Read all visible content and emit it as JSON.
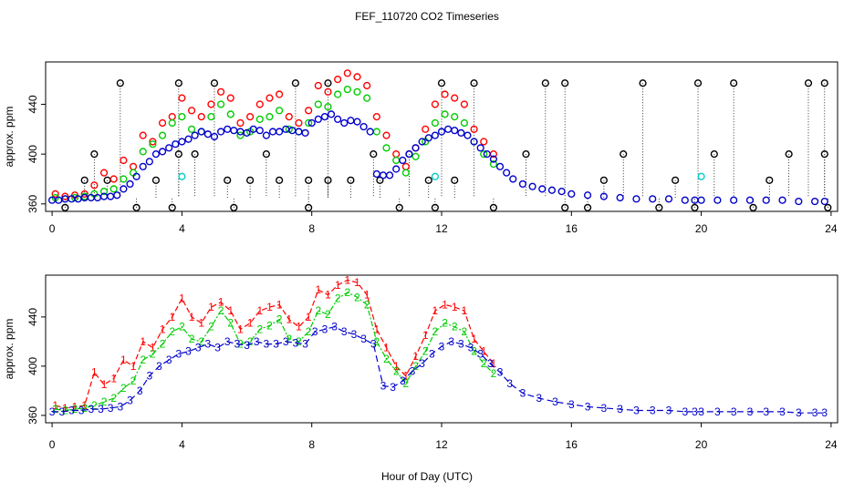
{
  "figure": {
    "title": "FEF_110720  CO2 Timeseries",
    "xlabel": "Hour of Day (UTC)"
  },
  "chart_data": [
    {
      "type": "scatter",
      "ylabel": "approx. ppm",
      "xlim": [
        -0.2,
        24.2
      ],
      "ylim": [
        354,
        474
      ],
      "x_ticks": [
        0,
        4,
        8,
        12,
        16,
        20,
        24
      ],
      "y_ticks": [
        360,
        400,
        440
      ],
      "y_tick_labels": [
        "360",
        "400",
        "440"
      ],
      "grid": false,
      "series": [
        {
          "key": "black",
          "color": "#000000",
          "x": [
            0.4,
            1.0,
            1.3,
            1.7,
            2.1,
            2.6,
            3.2,
            3.7,
            3.9,
            3.9,
            4.4,
            5.0,
            5.4,
            5.6,
            6.1,
            6.6,
            7.0,
            7.5,
            7.9,
            7.9,
            8.5,
            8.5,
            9.2,
            9.9,
            10.1,
            10.7,
            11.0,
            11.6,
            11.8,
            12.0,
            12.4,
            13.0,
            13.6,
            14.6,
            15.2,
            15.8,
            15.8,
            16.5,
            17.0,
            17.6,
            18.2,
            18.7,
            19.2,
            19.8,
            19.9,
            20.4,
            21.0,
            21.6,
            22.1,
            22.7,
            23.3,
            23.8,
            23.8,
            23.9
          ],
          "y": [
            357,
            379,
            400,
            379,
            457,
            357,
            379,
            357,
            400,
            457,
            400,
            457,
            379,
            357,
            379,
            400,
            379,
            457,
            379,
            357,
            379,
            457,
            379,
            400,
            379,
            357,
            400,
            379,
            357,
            457,
            379,
            457,
            357,
            400,
            457,
            357,
            457,
            357,
            379,
            400,
            457,
            357,
            379,
            357,
            457,
            400,
            457,
            357,
            379,
            400,
            457,
            400,
            457,
            357
          ]
        },
        {
          "key": "red",
          "color": "#ff0000",
          "x": [
            0.1,
            0.4,
            0.7,
            1.0,
            1.3,
            1.6,
            1.9,
            2.2,
            2.5,
            2.8,
            3.1,
            3.4,
            3.7,
            4.0,
            4.3,
            4.6,
            4.9,
            5.2,
            5.5,
            5.8,
            6.1,
            6.4,
            6.7,
            7.0,
            7.3,
            7.6,
            7.9,
            8.2,
            8.5,
            8.8,
            9.1,
            9.4,
            9.7,
            10.0,
            10.3,
            10.6,
            10.9,
            11.2,
            11.5,
            11.8,
            12.1,
            12.4,
            12.7,
            13.0,
            13.3,
            13.6
          ],
          "y": [
            368,
            366,
            367,
            368,
            375,
            385,
            380,
            395,
            390,
            415,
            410,
            425,
            430,
            445,
            435,
            430,
            440,
            450,
            445,
            425,
            430,
            440,
            445,
            448,
            430,
            425,
            435,
            455,
            450,
            460,
            465,
            462,
            455,
            430,
            415,
            400,
            390,
            405,
            420,
            440,
            448,
            445,
            440,
            420,
            410,
            400
          ]
        },
        {
          "key": "green",
          "color": "#00cc00",
          "x": [
            0.1,
            0.4,
            0.7,
            1.0,
            1.3,
            1.6,
            1.9,
            2.2,
            2.5,
            2.8,
            3.1,
            3.4,
            3.7,
            4.0,
            4.3,
            4.6,
            4.9,
            5.2,
            5.5,
            5.8,
            6.1,
            6.4,
            6.7,
            7.0,
            7.3,
            7.6,
            7.9,
            8.2,
            8.5,
            8.8,
            9.1,
            9.4,
            9.7,
            10.0,
            10.3,
            10.6,
            10.9,
            11.2,
            11.5,
            11.8,
            12.1,
            12.4,
            12.7,
            13.0,
            13.3,
            13.6
          ],
          "y": [
            365,
            364,
            365,
            366,
            368,
            370,
            372,
            380,
            385,
            402,
            408,
            415,
            425,
            430,
            420,
            418,
            430,
            440,
            432,
            415,
            418,
            428,
            430,
            435,
            420,
            418,
            425,
            440,
            438,
            448,
            452,
            450,
            445,
            418,
            405,
            395,
            385,
            398,
            410,
            425,
            432,
            430,
            425,
            410,
            400,
            392
          ]
        },
        {
          "key": "blue",
          "color": "#0000cc",
          "x": [
            0.0,
            0.2,
            0.4,
            0.6,
            0.8,
            1.0,
            1.2,
            1.4,
            1.6,
            1.8,
            2.0,
            2.2,
            2.4,
            2.6,
            2.8,
            3.0,
            3.2,
            3.4,
            3.6,
            3.8,
            4.0,
            4.2,
            4.4,
            4.6,
            4.8,
            5.0,
            5.2,
            5.4,
            5.6,
            5.8,
            6.0,
            6.2,
            6.4,
            6.6,
            6.8,
            7.0,
            7.2,
            7.4,
            7.6,
            7.8,
            8.0,
            8.2,
            8.4,
            8.6,
            8.8,
            9.0,
            9.2,
            9.4,
            9.6,
            9.8,
            10.0,
            10.2,
            10.4,
            10.6,
            10.8,
            11.0,
            11.2,
            11.4,
            11.6,
            11.8,
            12.0,
            12.2,
            12.4,
            12.6,
            12.8,
            13.0,
            13.2,
            13.4,
            13.6,
            13.8,
            14.0,
            14.2,
            14.5,
            14.8,
            15.1,
            15.4,
            15.7,
            16.0,
            16.5,
            17.0,
            17.5,
            18.0,
            18.5,
            19.0,
            19.5,
            19.8,
            20.0,
            20.5,
            21.0,
            21.5,
            22.0,
            22.5,
            23.0,
            23.5,
            23.8
          ],
          "y": [
            363,
            363,
            364,
            364,
            364,
            365,
            365,
            365,
            366,
            366,
            367,
            372,
            376,
            382,
            390,
            394,
            400,
            402,
            405,
            408,
            410,
            412,
            415,
            418,
            416,
            414,
            418,
            420,
            419,
            418,
            417,
            420,
            419,
            415,
            418,
            418,
            420,
            419,
            418,
            417,
            425,
            428,
            430,
            432,
            428,
            425,
            427,
            426,
            422,
            418,
            384,
            383,
            383,
            388,
            395,
            400,
            405,
            410,
            413,
            415,
            418,
            420,
            419,
            417,
            415,
            410,
            405,
            400,
            396,
            390,
            385,
            380,
            376,
            374,
            372,
            371,
            370,
            368,
            367,
            366,
            365,
            364,
            364,
            364,
            363,
            363,
            363,
            363,
            363,
            363,
            363,
            363,
            362,
            362,
            362
          ]
        },
        {
          "key": "cyan",
          "color": "#00cccc",
          "x": [
            4.0,
            11.8,
            20.0
          ],
          "y": [
            382,
            382,
            382
          ]
        }
      ]
    },
    {
      "type": "line",
      "ylabel": "approx. ppm",
      "xlim": [
        -0.2,
        24.2
      ],
      "ylim": [
        354,
        474
      ],
      "x_ticks": [
        0,
        4,
        8,
        12,
        16,
        20,
        24
      ],
      "y_ticks": [
        360,
        400,
        440
      ],
      "y_tick_labels": [
        "360",
        "400",
        "440"
      ],
      "grid": false,
      "series": [
        {
          "key": "1",
          "marker": "1",
          "color": "#ff0000",
          "x": [
            0.1,
            0.4,
            0.7,
            1.0,
            1.3,
            1.6,
            1.9,
            2.2,
            2.5,
            2.8,
            3.1,
            3.4,
            3.7,
            4.0,
            4.3,
            4.6,
            4.9,
            5.2,
            5.5,
            5.8,
            6.1,
            6.4,
            6.7,
            7.0,
            7.3,
            7.6,
            7.9,
            8.2,
            8.5,
            8.8,
            9.1,
            9.4,
            9.7,
            10.0,
            10.3,
            10.6,
            10.9,
            11.2,
            11.5,
            11.8,
            12.1,
            12.4,
            12.7,
            13.0,
            13.3,
            13.6
          ],
          "y": [
            368,
            366,
            367,
            368,
            395,
            385,
            390,
            405,
            400,
            420,
            415,
            430,
            440,
            455,
            440,
            435,
            448,
            452,
            445,
            430,
            435,
            445,
            448,
            450,
            438,
            432,
            440,
            462,
            458,
            466,
            470,
            468,
            458,
            430,
            415,
            400,
            392,
            408,
            425,
            445,
            450,
            448,
            445,
            422,
            412,
            402
          ]
        },
        {
          "key": "2",
          "marker": "2",
          "color": "#00cc00",
          "x": [
            0.1,
            0.4,
            0.7,
            1.0,
            1.3,
            1.6,
            1.9,
            2.2,
            2.5,
            2.8,
            3.1,
            3.4,
            3.7,
            4.0,
            4.3,
            4.6,
            4.9,
            5.2,
            5.5,
            5.8,
            6.1,
            6.4,
            6.7,
            7.0,
            7.3,
            7.6,
            7.9,
            8.2,
            8.5,
            8.8,
            9.1,
            9.4,
            9.7,
            10.0,
            10.3,
            10.6,
            10.9,
            11.2,
            11.5,
            11.8,
            12.1,
            12.4,
            12.7,
            13.0,
            13.3,
            13.6
          ],
          "y": [
            365,
            364,
            365,
            366,
            368,
            371,
            374,
            382,
            388,
            405,
            410,
            418,
            428,
            432,
            422,
            420,
            432,
            445,
            435,
            418,
            420,
            430,
            433,
            438,
            422,
            420,
            428,
            445,
            442,
            455,
            460,
            456,
            450,
            420,
            406,
            396,
            386,
            400,
            412,
            428,
            435,
            432,
            428,
            412,
            402,
            394
          ]
        },
        {
          "key": "3",
          "marker": "3",
          "color": "#0000cc",
          "x": [
            0.0,
            0.3,
            0.6,
            0.9,
            1.2,
            1.5,
            1.8,
            2.1,
            2.4,
            2.7,
            3.0,
            3.3,
            3.6,
            3.9,
            4.2,
            4.5,
            4.8,
            5.1,
            5.4,
            5.7,
            6.0,
            6.3,
            6.6,
            6.9,
            7.2,
            7.5,
            7.8,
            8.1,
            8.4,
            8.7,
            9.0,
            9.3,
            9.6,
            9.9,
            10.2,
            10.5,
            10.8,
            11.1,
            11.4,
            11.7,
            12.0,
            12.3,
            12.6,
            12.9,
            13.2,
            13.5,
            13.8,
            14.1,
            14.5,
            15.0,
            15.5,
            16.0,
            16.5,
            17.0,
            17.5,
            18.0,
            18.5,
            19.0,
            19.5,
            19.8,
            20.0,
            20.5,
            21.0,
            21.5,
            22.0,
            22.5,
            23.0,
            23.5,
            23.8
          ],
          "y": [
            363,
            363,
            364,
            364,
            365,
            365,
            366,
            367,
            372,
            380,
            392,
            400,
            405,
            410,
            412,
            415,
            418,
            415,
            420,
            418,
            417,
            420,
            418,
            418,
            420,
            419,
            418,
            428,
            430,
            432,
            428,
            426,
            422,
            418,
            384,
            383,
            388,
            396,
            402,
            410,
            416,
            420,
            418,
            415,
            410,
            402,
            395,
            386,
            378,
            374,
            371,
            369,
            367,
            366,
            365,
            364,
            364,
            364,
            363,
            363,
            363,
            363,
            363,
            363,
            363,
            363,
            362,
            362,
            362
          ]
        }
      ]
    }
  ]
}
